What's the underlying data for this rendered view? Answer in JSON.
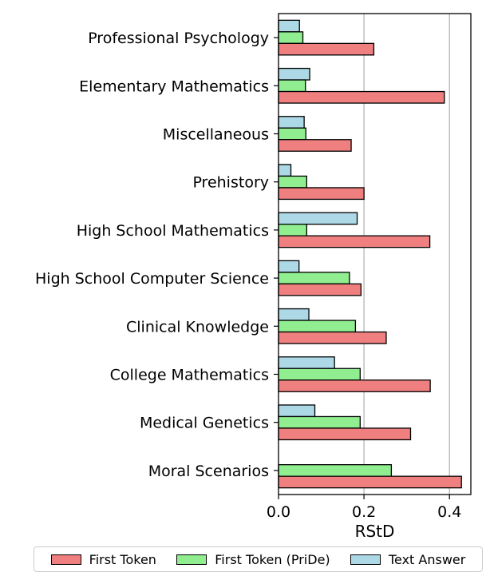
{
  "chart_data": {
    "type": "bar",
    "orientation": "horizontal",
    "xlabel": "RStD",
    "ylabel": "",
    "title": "",
    "xlim": [
      0,
      0.45
    ],
    "xticks": [
      "0.0",
      "0.2",
      "0.4"
    ],
    "grid": "vertical lines at major x ticks",
    "legend_position": "below plot",
    "categories": [
      "Professional Psychology",
      "Elementary Mathematics",
      "Miscellaneous",
      "Prehistory",
      "High School Mathematics",
      "High School Computer Science",
      "Clinical Knowledge",
      "College Mathematics",
      "Medical Genetics",
      "Moral Scenarios"
    ],
    "series": [
      {
        "name": "First Token",
        "color": "#f08080",
        "values": [
          0.223,
          0.388,
          0.17,
          0.2,
          0.354,
          0.193,
          0.252,
          0.355,
          0.309,
          0.428
        ]
      },
      {
        "name": "First Token (PriDe)",
        "color": "#90ee90",
        "values": [
          0.057,
          0.063,
          0.064,
          0.066,
          0.066,
          0.166,
          0.18,
          0.191,
          0.191,
          0.264
        ]
      },
      {
        "name": "Text Answer",
        "color": "#add8e6",
        "values": [
          0.049,
          0.073,
          0.06,
          0.029,
          0.184,
          0.048,
          0.071,
          0.131,
          0.085,
          0.0
        ]
      }
    ]
  }
}
